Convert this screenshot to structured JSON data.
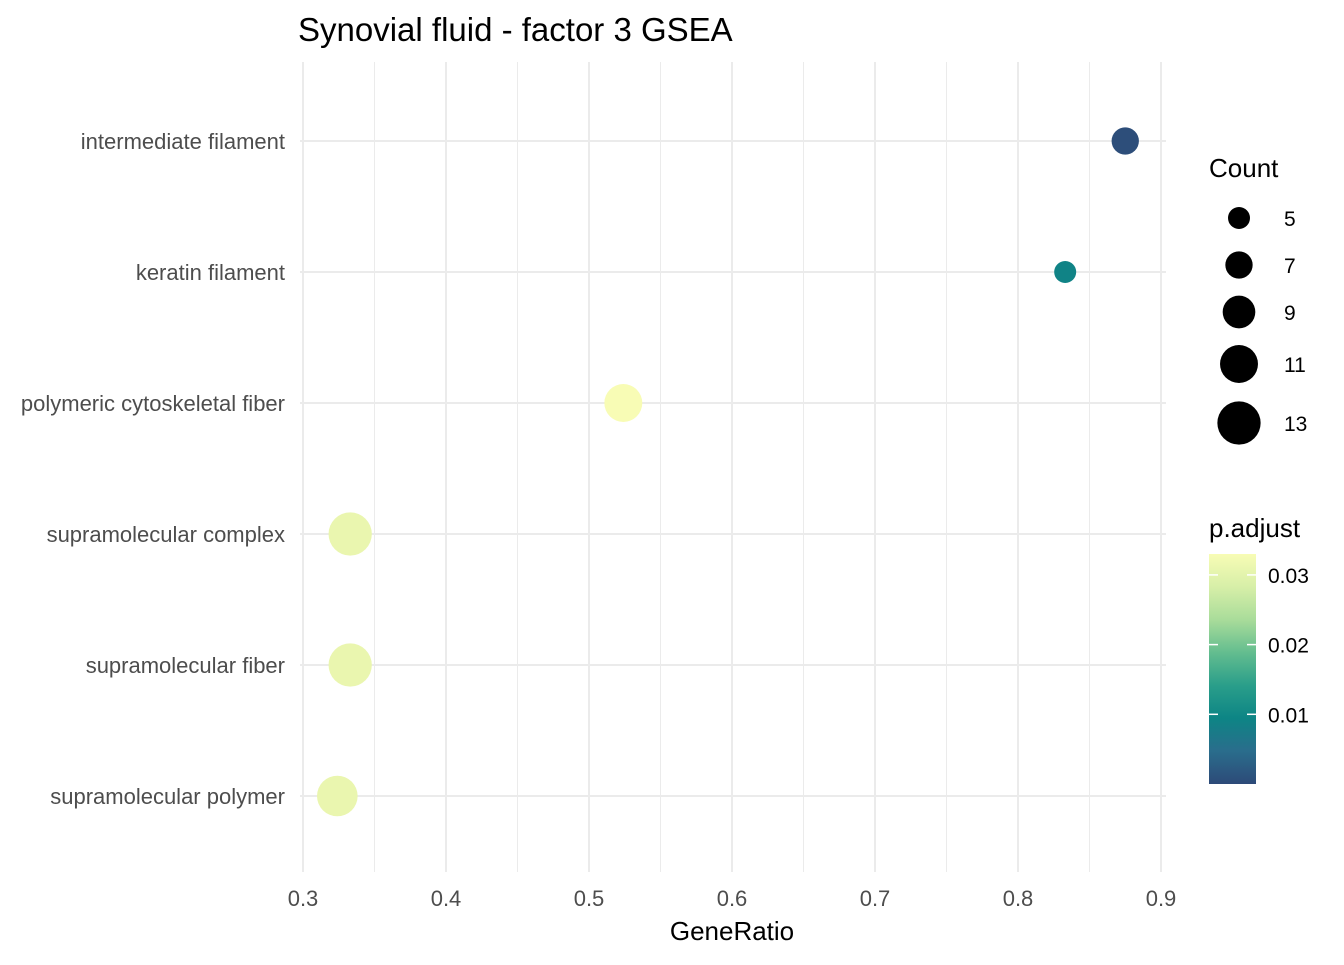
{
  "chart_data": {
    "type": "scatter",
    "title": "Synovial fluid - factor 3 GSEA",
    "xlabel": "GeneRatio",
    "ylabel": "",
    "xlim": [
      0.3,
      0.9
    ],
    "x_ticks": [
      "0.3",
      "0.4",
      "0.5",
      "0.6",
      "0.7",
      "0.8",
      "0.9"
    ],
    "x_tick_values": [
      0.3,
      0.4,
      0.5,
      0.6,
      0.7,
      0.8,
      0.9
    ],
    "categories": [
      "intermediate filament",
      "keratin filament",
      "polymeric cytoskeletal fiber",
      "supramolecular complex",
      "supramolecular fiber",
      "supramolecular polymer"
    ],
    "points": [
      {
        "term": "intermediate filament",
        "gene_ratio": 0.875,
        "count": 7,
        "p_adjust": 0.0005
      },
      {
        "term": "keratin filament",
        "gene_ratio": 0.833,
        "count": 5,
        "p_adjust": 0.009
      },
      {
        "term": "polymeric cytoskeletal fiber",
        "gene_ratio": 0.524,
        "count": 11,
        "p_adjust": 0.033
      },
      {
        "term": "supramolecular complex",
        "gene_ratio": 0.333,
        "count": 13,
        "p_adjust": 0.031
      },
      {
        "term": "supramolecular fiber",
        "gene_ratio": 0.333,
        "count": 13,
        "p_adjust": 0.031
      },
      {
        "term": "supramolecular polymer",
        "gene_ratio": 0.324,
        "count": 12,
        "p_adjust": 0.031
      }
    ],
    "grid": true,
    "legend": {
      "placement": "right",
      "size": {
        "title": "Count",
        "labels": [
          "5",
          "7",
          "9",
          "11",
          "13"
        ],
        "values": [
          5,
          7,
          9,
          11,
          13
        ]
      },
      "color": {
        "title": "p.adjust",
        "labels": [
          "0.03",
          "0.02",
          "0.01"
        ],
        "values": [
          0.03,
          0.02,
          0.01
        ],
        "range": [
          0.0,
          0.033
        ],
        "colors": [
          "#2d4a78",
          "#2a6d8c",
          "#0d8585",
          "#2a9e8a",
          "#63bd8f",
          "#a9dc9a",
          "#d7efa8",
          "#f8fcb5"
        ]
      }
    }
  }
}
